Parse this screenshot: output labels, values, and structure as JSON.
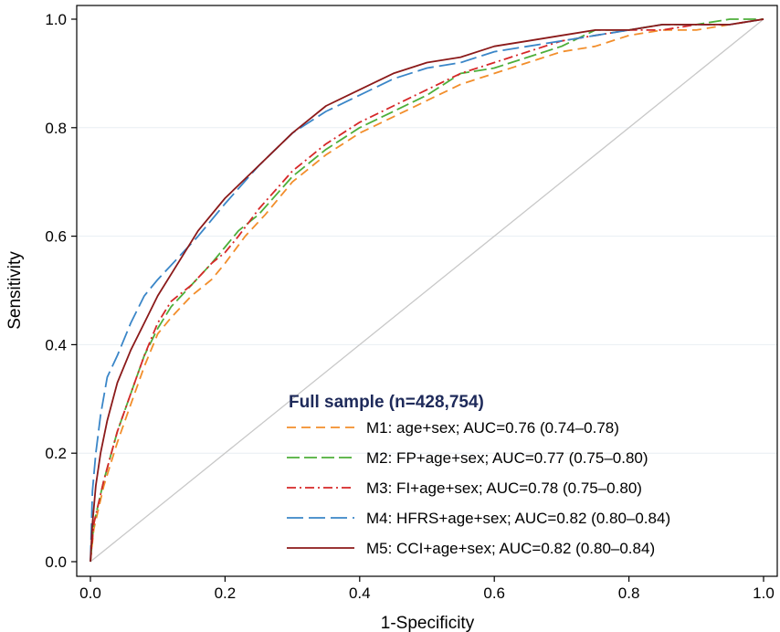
{
  "chart_data": {
    "type": "line",
    "xlabel": "1-Specificity",
    "ylabel": "Sensitivity",
    "xlim": [
      0,
      1
    ],
    "ylim": [
      0,
      1
    ],
    "x_ticks": [
      "0.0",
      "0.2",
      "0.4",
      "0.6",
      "0.8",
      "1.0"
    ],
    "y_ticks": [
      "0.0",
      "0.2",
      "0.4",
      "0.6",
      "0.8",
      "1.0"
    ],
    "grid": "horizontal",
    "legend_title": "Full sample (n=428,754)",
    "legend_position": "bottom-right",
    "reference_line": {
      "x": [
        0,
        1
      ],
      "y": [
        0,
        1
      ],
      "color": "#c8c8c8"
    },
    "series": [
      {
        "name": "M1: age+sex; AUC=0.76 (0.74–0.78)",
        "color": "#f28e2b",
        "dash": "10,6",
        "x": [
          0,
          0.005,
          0.02,
          0.04,
          0.06,
          0.08,
          0.1,
          0.12,
          0.15,
          0.18,
          0.2,
          0.23,
          0.26,
          0.3,
          0.35,
          0.4,
          0.45,
          0.5,
          0.55,
          0.6,
          0.65,
          0.7,
          0.75,
          0.8,
          0.85,
          0.9,
          0.95,
          1.0
        ],
        "y": [
          0,
          0.06,
          0.14,
          0.22,
          0.29,
          0.36,
          0.42,
          0.45,
          0.49,
          0.52,
          0.55,
          0.6,
          0.64,
          0.7,
          0.75,
          0.79,
          0.82,
          0.85,
          0.88,
          0.9,
          0.92,
          0.94,
          0.95,
          0.97,
          0.98,
          0.98,
          0.99,
          1.0
        ]
      },
      {
        "name": "M2: FP+age+sex; AUC=0.77 (0.75–0.80)",
        "color": "#4daf3a",
        "dash": "14,5",
        "x": [
          0,
          0.005,
          0.02,
          0.04,
          0.06,
          0.08,
          0.1,
          0.12,
          0.15,
          0.18,
          0.2,
          0.22,
          0.25,
          0.3,
          0.35,
          0.4,
          0.45,
          0.5,
          0.55,
          0.6,
          0.65,
          0.7,
          0.75,
          0.8,
          0.85,
          0.9,
          0.95,
          1.0
        ],
        "y": [
          0,
          0.07,
          0.15,
          0.24,
          0.31,
          0.38,
          0.43,
          0.47,
          0.51,
          0.55,
          0.58,
          0.61,
          0.64,
          0.71,
          0.76,
          0.8,
          0.83,
          0.86,
          0.9,
          0.91,
          0.93,
          0.95,
          0.98,
          0.98,
          0.99,
          0.99,
          1.0,
          1.0
        ]
      },
      {
        "name": "M3: FI+age+sex; AUC=0.78 (0.75–0.80)",
        "color": "#d62728",
        "dash": "10,4,2,4",
        "x": [
          0,
          0.005,
          0.02,
          0.04,
          0.06,
          0.08,
          0.1,
          0.12,
          0.15,
          0.18,
          0.2,
          0.22,
          0.25,
          0.3,
          0.35,
          0.4,
          0.45,
          0.5,
          0.55,
          0.6,
          0.65,
          0.7,
          0.75,
          0.8,
          0.85,
          0.9,
          0.95,
          1.0
        ],
        "y": [
          0,
          0.07,
          0.15,
          0.24,
          0.31,
          0.38,
          0.44,
          0.48,
          0.51,
          0.55,
          0.57,
          0.6,
          0.65,
          0.72,
          0.77,
          0.81,
          0.84,
          0.87,
          0.9,
          0.92,
          0.94,
          0.96,
          0.97,
          0.98,
          0.98,
          0.99,
          0.99,
          1.0
        ]
      },
      {
        "name": "M4: HFRS+age+sex; AUC=0.82 (0.80–0.84)",
        "color": "#3a86c8",
        "dash": "18,6",
        "x": [
          0,
          0.003,
          0.008,
          0.015,
          0.025,
          0.04,
          0.06,
          0.08,
          0.1,
          0.13,
          0.16,
          0.2,
          0.25,
          0.3,
          0.35,
          0.4,
          0.45,
          0.5,
          0.55,
          0.6,
          0.65,
          0.7,
          0.75,
          0.8,
          0.85,
          0.9,
          0.95,
          1.0
        ],
        "y": [
          0,
          0.13,
          0.2,
          0.27,
          0.34,
          0.38,
          0.44,
          0.49,
          0.52,
          0.56,
          0.6,
          0.66,
          0.73,
          0.79,
          0.83,
          0.86,
          0.89,
          0.91,
          0.92,
          0.94,
          0.95,
          0.96,
          0.97,
          0.98,
          0.99,
          0.99,
          0.99,
          1.0
        ]
      },
      {
        "name": "M5: CCI+age+sex; AUC=0.82 (0.80–0.84)",
        "color": "#8b1a1a",
        "dash": "",
        "x": [
          0,
          0.003,
          0.008,
          0.015,
          0.025,
          0.04,
          0.06,
          0.08,
          0.1,
          0.13,
          0.16,
          0.2,
          0.25,
          0.3,
          0.35,
          0.4,
          0.45,
          0.5,
          0.55,
          0.6,
          0.65,
          0.7,
          0.75,
          0.8,
          0.85,
          0.9,
          0.95,
          1.0
        ],
        "y": [
          0,
          0.07,
          0.14,
          0.2,
          0.26,
          0.33,
          0.39,
          0.44,
          0.49,
          0.55,
          0.61,
          0.67,
          0.73,
          0.79,
          0.84,
          0.87,
          0.9,
          0.92,
          0.93,
          0.95,
          0.96,
          0.97,
          0.98,
          0.98,
          0.99,
          0.99,
          0.99,
          1.0
        ]
      }
    ]
  }
}
